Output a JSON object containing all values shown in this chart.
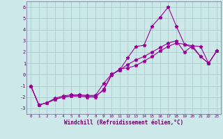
{
  "title": "",
  "xlabel": "Windchill (Refroidissement éolien,°C)",
  "ylabel": "",
  "background_color": "#cce8e8",
  "grid_color": "#aacccc",
  "line_color": "#990099",
  "xlim": [
    -0.5,
    23.5
  ],
  "ylim": [
    -3.5,
    6.5
  ],
  "yticks": [
    -3,
    -2,
    -1,
    0,
    1,
    2,
    3,
    4,
    5,
    6
  ],
  "xticks": [
    0,
    1,
    2,
    3,
    4,
    5,
    6,
    7,
    8,
    9,
    10,
    11,
    12,
    13,
    14,
    15,
    16,
    17,
    18,
    19,
    20,
    21,
    22,
    23
  ],
  "series": [
    {
      "x": [
        0,
        1,
        2,
        3,
        4,
        5,
        6,
        7,
        8,
        9,
        10,
        11,
        12,
        13,
        14,
        15,
        16,
        17,
        18,
        19,
        20,
        21,
        22,
        23
      ],
      "y": [
        -1,
        -2.7,
        -2.5,
        -2.1,
        -1.9,
        -1.8,
        -1.8,
        -1.85,
        -1.85,
        -0.8,
        0.05,
        0.4,
        1.5,
        2.5,
        2.6,
        4.3,
        5.1,
        6.0,
        4.3,
        2.7,
        2.55,
        1.6,
        1.0,
        2.1
      ]
    },
    {
      "x": [
        0,
        1,
        2,
        3,
        4,
        5,
        6,
        7,
        8,
        9,
        10,
        11,
        12,
        13,
        14,
        15,
        16,
        17,
        18,
        19,
        20,
        21,
        22,
        23
      ],
      "y": [
        -1,
        -2.7,
        -2.5,
        -2.2,
        -2.0,
        -1.9,
        -1.9,
        -1.9,
        -1.9,
        -1.4,
        -0.05,
        0.5,
        0.6,
        0.8,
        1.2,
        1.6,
        2.1,
        2.5,
        2.8,
        2.7,
        2.4,
        1.6,
        1.0,
        2.1
      ]
    },
    {
      "x": [
        0,
        1,
        2,
        3,
        4,
        5,
        6,
        7,
        8,
        9,
        10,
        11,
        12,
        13,
        14,
        15,
        16,
        17,
        18,
        19,
        20,
        21,
        22,
        23
      ],
      "y": [
        -1,
        -2.7,
        -2.5,
        -2.2,
        -2.0,
        -1.9,
        -1.9,
        -2.0,
        -2.0,
        -1.3,
        0.0,
        0.4,
        0.9,
        1.3,
        1.6,
        2.0,
        2.4,
        2.8,
        3.0,
        2.0,
        2.55,
        2.5,
        1.0,
        2.1
      ]
    }
  ]
}
